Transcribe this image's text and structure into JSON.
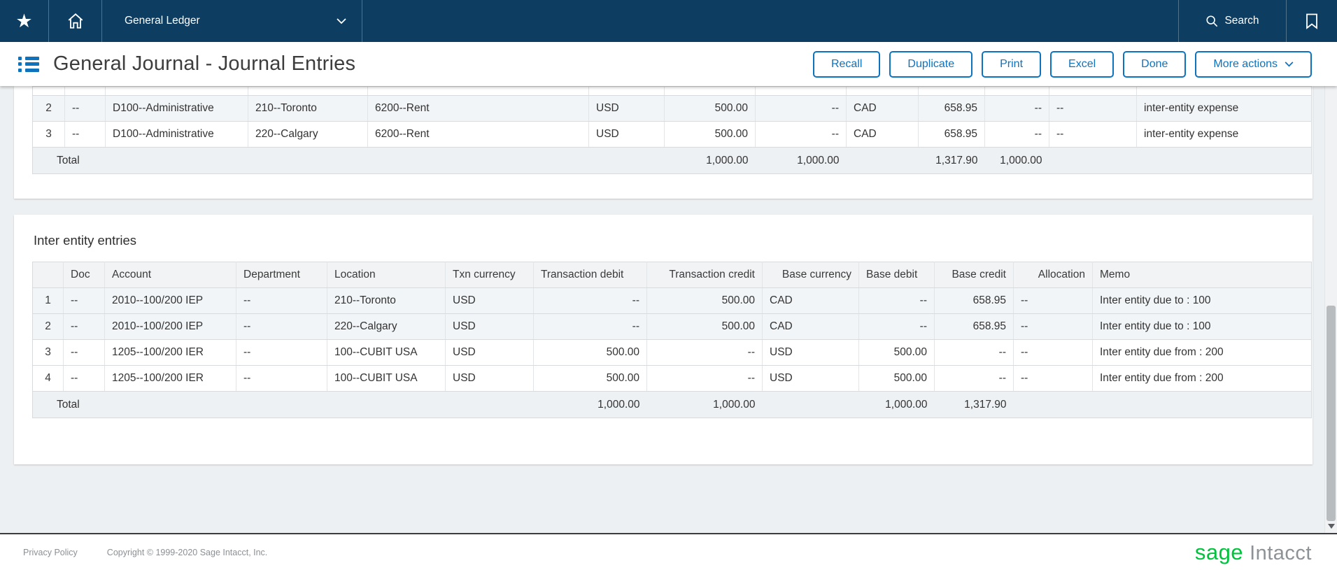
{
  "navbar": {
    "app_menu_label": "General Ledger",
    "search_label": "Search"
  },
  "header": {
    "title": "General Journal - Journal Entries",
    "buttons": [
      "Recall",
      "Duplicate",
      "Print",
      "Excel",
      "Done"
    ],
    "more_actions_label": "More actions"
  },
  "top_table": {
    "rows": [
      {
        "num": "2",
        "shaded": true,
        "cells": [
          "--",
          "D100--Administrative",
          "210--Toronto",
          "6200--Rent",
          "USD",
          "500.00",
          "--",
          "CAD",
          "658.95",
          "--",
          "--",
          "inter-entity expense"
        ]
      },
      {
        "num": "3",
        "shaded": false,
        "cells": [
          "--",
          "D100--Administrative",
          "220--Calgary",
          "6200--Rent",
          "USD",
          "500.00",
          "--",
          "CAD",
          "658.95",
          "--",
          "--",
          "inter-entity expense"
        ]
      }
    ],
    "total": {
      "label": "Total",
      "txn_debit": "1,000.00",
      "txn_credit": "1,000.00",
      "base_debit": "1,317.90",
      "base_credit": "1,000.00"
    }
  },
  "inter_entity": {
    "section_title": "Inter entity entries",
    "columns": [
      "",
      "Doc",
      "Account",
      "Department",
      "Location",
      "Txn\ncurrency",
      "Transaction\ndebit",
      "Transaction\ncredit",
      "Base\ncurrency",
      "Base\ndebit",
      "Base\ncredit",
      "Allocation",
      "Memo"
    ],
    "rows": [
      {
        "num": "1",
        "shaded": true,
        "cells": [
          "--",
          "2010--100/200 IEP",
          "--",
          "210--Toronto",
          "USD",
          "--",
          "500.00",
          "CAD",
          "--",
          "658.95",
          "--",
          "Inter entity due to : 100"
        ]
      },
      {
        "num": "2",
        "shaded": true,
        "cells": [
          "--",
          "2010--100/200 IEP",
          "--",
          "220--Calgary",
          "USD",
          "--",
          "500.00",
          "CAD",
          "--",
          "658.95",
          "--",
          "Inter entity due to : 100"
        ]
      },
      {
        "num": "3",
        "shaded": false,
        "cells": [
          "--",
          "1205--100/200 IER",
          "--",
          "100--CUBIT USA",
          "USD",
          "500.00",
          "--",
          "USD",
          "500.00",
          "--",
          "--",
          "Inter entity due from : 200"
        ]
      },
      {
        "num": "4",
        "shaded": false,
        "cells": [
          "--",
          "1205--100/200 IER",
          "--",
          "100--CUBIT USA",
          "USD",
          "500.00",
          "--",
          "USD",
          "500.00",
          "--",
          "--",
          "Inter entity due from : 200"
        ]
      }
    ],
    "total": {
      "label": "Total",
      "txn_debit": "1,000.00",
      "txn_credit": "1,000.00",
      "base_debit": "1,000.00",
      "base_credit": "1,317.90"
    }
  },
  "footer": {
    "privacy_label": "Privacy Policy",
    "copyright": "Copyright © 1999-2020 Sage Intacct, Inc.",
    "brand_sage": "sage",
    "brand_intacct": "Intacct"
  },
  "colors": {
    "navbar_blue": "#0d3e62",
    "accent_blue": "#0e73bf",
    "sage_green": "#00c23d",
    "row_stripe": "#f2f5f7"
  }
}
